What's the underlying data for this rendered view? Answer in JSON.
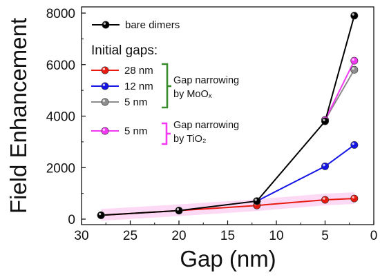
{
  "chart_data": {
    "type": "line",
    "xlabel": "Gap (nm)",
    "ylabel": "Field Enhancement",
    "xlim": [
      30,
      0
    ],
    "ylim": [
      0,
      8000
    ],
    "xticks": [
      30,
      25,
      20,
      15,
      10,
      5,
      0
    ],
    "yticks": [
      0,
      2000,
      4000,
      6000,
      8000
    ],
    "x_axis_reversed": true,
    "grid": false,
    "legend_position": "top-left",
    "legend_heading": "Initial gaps:",
    "series": [
      {
        "name": "bare dimers",
        "color": "#000000",
        "x": [
          28,
          20,
          12,
          5,
          2
        ],
        "y": [
          150,
          330,
          700,
          3800,
          7900
        ]
      },
      {
        "name": "28 nm",
        "color": "#e8190f",
        "x": [
          28,
          20,
          12,
          5,
          2
        ],
        "y": [
          150,
          330,
          530,
          750,
          800
        ]
      },
      {
        "name": "12 nm",
        "color": "#1414e6",
        "x": [
          12,
          5,
          2
        ],
        "y": [
          700,
          2050,
          2880
        ]
      },
      {
        "name": "5 nm",
        "color": "#8c8c8c",
        "x": [
          5,
          2
        ],
        "y": [
          3850,
          5800
        ]
      },
      {
        "name": "5 nm",
        "color": "#f238f2",
        "x": [
          5,
          2
        ],
        "y": [
          3850,
          6150
        ]
      }
    ],
    "annotations": [
      {
        "bracket_color": "#3a8a2e",
        "lines": [
          "Gap narrowing",
          "by MoOₓ"
        ]
      },
      {
        "bracket_color": "#f238f2",
        "lines": [
          "Gap narrowing",
          "by TiO₂"
        ]
      }
    ],
    "shaded_band_color": "#fbd3f4"
  }
}
